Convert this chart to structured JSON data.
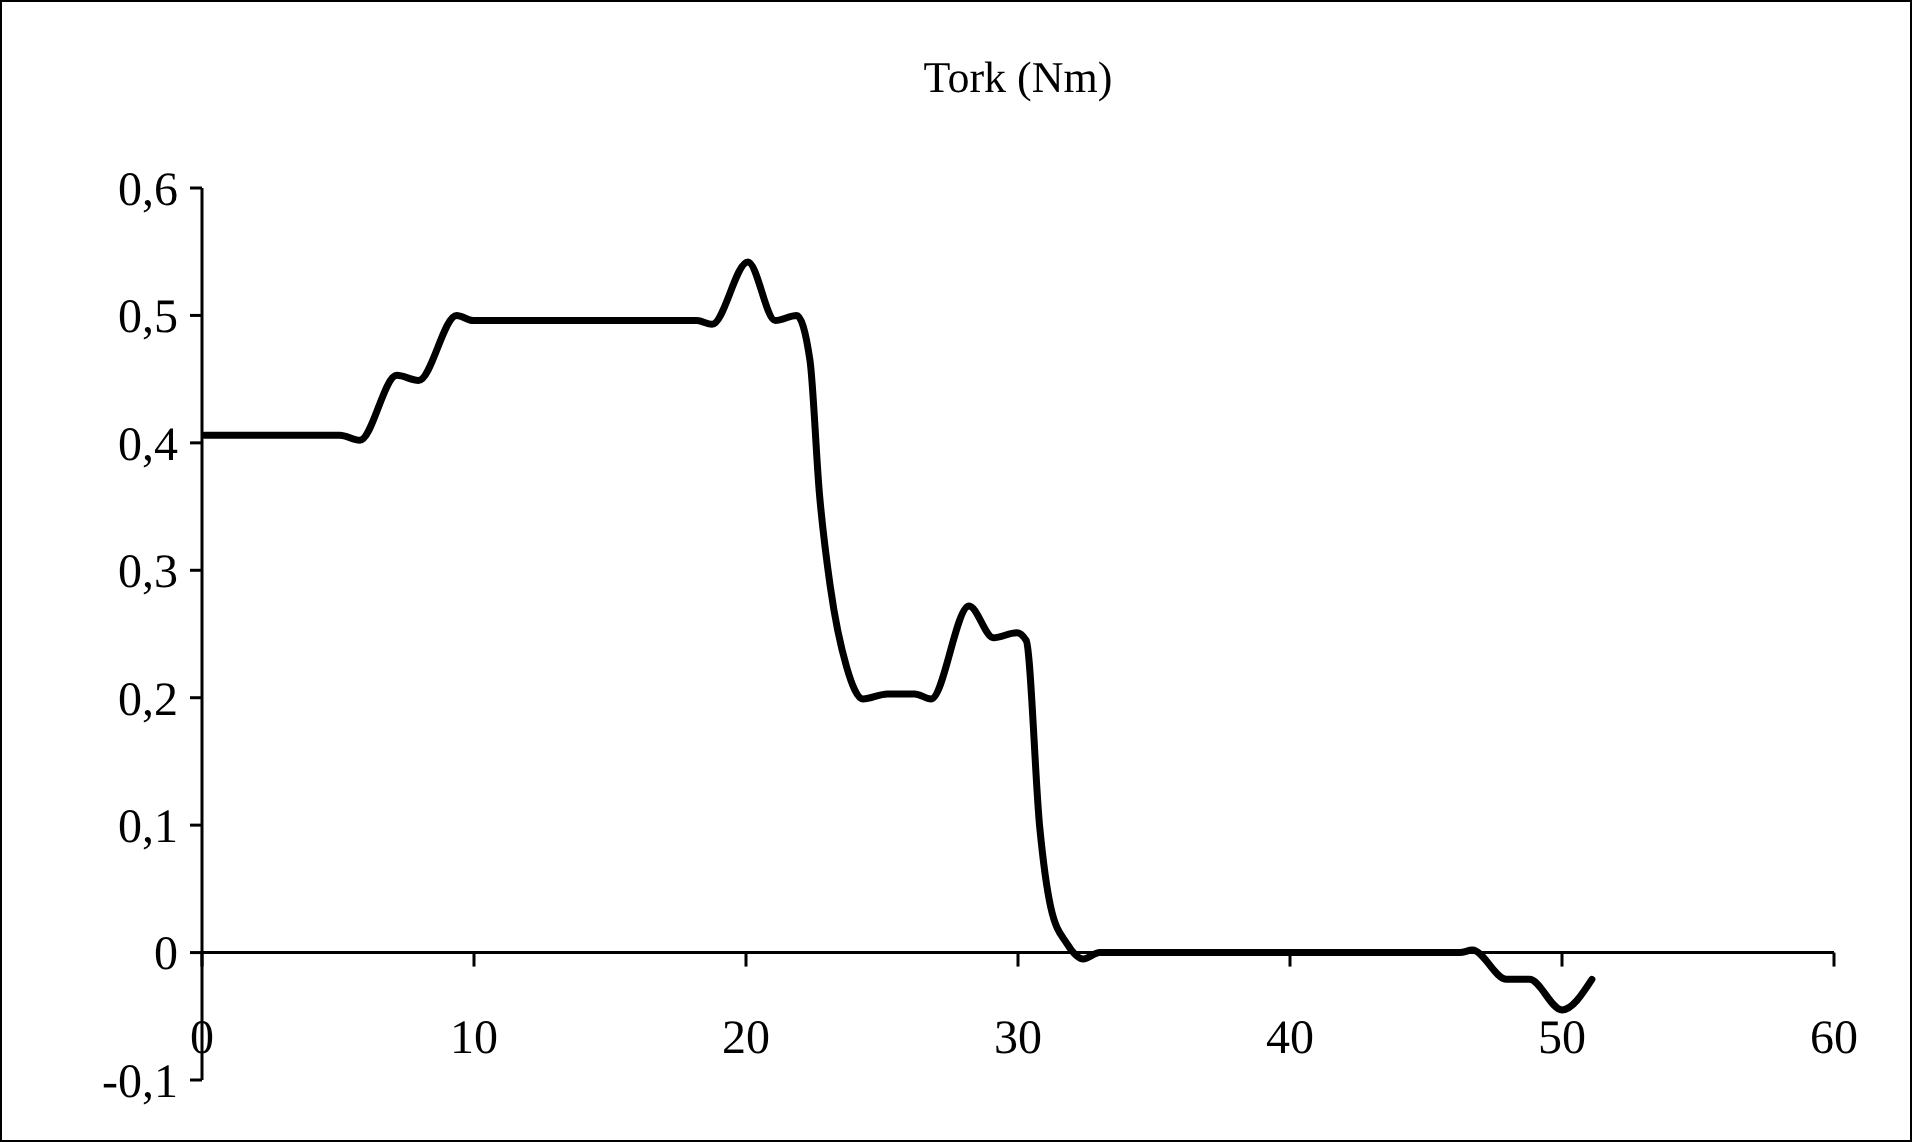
{
  "chart_data": {
    "type": "line",
    "title": "Tork (Nm)",
    "series": [
      {
        "color": "#000000",
        "x": [
          0.1,
          5.07,
          5.8,
          7.16,
          7.96,
          9.36,
          9.97,
          18.2,
          18.75,
          20.07,
          21.08,
          21.86,
          22.35,
          22.7,
          23.1,
          23.7,
          24.3,
          25.2,
          26.2,
          26.8,
          28.2,
          29.1,
          29.95,
          30.3,
          30.8,
          31.2,
          31.8,
          32.4,
          33.0,
          46.25,
          46.7,
          47.96,
          48.8,
          50.0,
          51.1
        ],
        "values": [
          0.406,
          0.406,
          0.402,
          0.453,
          0.449,
          0.5,
          0.496,
          0.496,
          0.493,
          0.542,
          0.496,
          0.5,
          0.465,
          0.36,
          0.287,
          0.224,
          0.199,
          0.203,
          0.203,
          0.199,
          0.272,
          0.247,
          0.251,
          0.245,
          0.098,
          0.036,
          0.007,
          -0.005,
          0,
          0,
          0.002,
          -0.021,
          -0.021,
          -0.045,
          -0.021
        ]
      }
    ],
    "xlim": [
      0,
      60
    ],
    "xticks": [
      0,
      10,
      20,
      30,
      40,
      50,
      60
    ],
    "ylim": [
      -0.1,
      0.6
    ],
    "yticks": [
      {
        "value": -0.1,
        "label": "-0,1"
      },
      {
        "value": 0,
        "label": "0"
      },
      {
        "value": 0.1,
        "label": "0,1"
      },
      {
        "value": 0.2,
        "label": "0,2"
      },
      {
        "value": 0.3,
        "label": "0,3"
      },
      {
        "value": 0.4,
        "label": "0,4"
      },
      {
        "value": 0.5,
        "label": "0,5"
      },
      {
        "value": 0.6,
        "label": "0,6"
      }
    ],
    "grid": false,
    "marker": "none",
    "line_style": "solid"
  }
}
